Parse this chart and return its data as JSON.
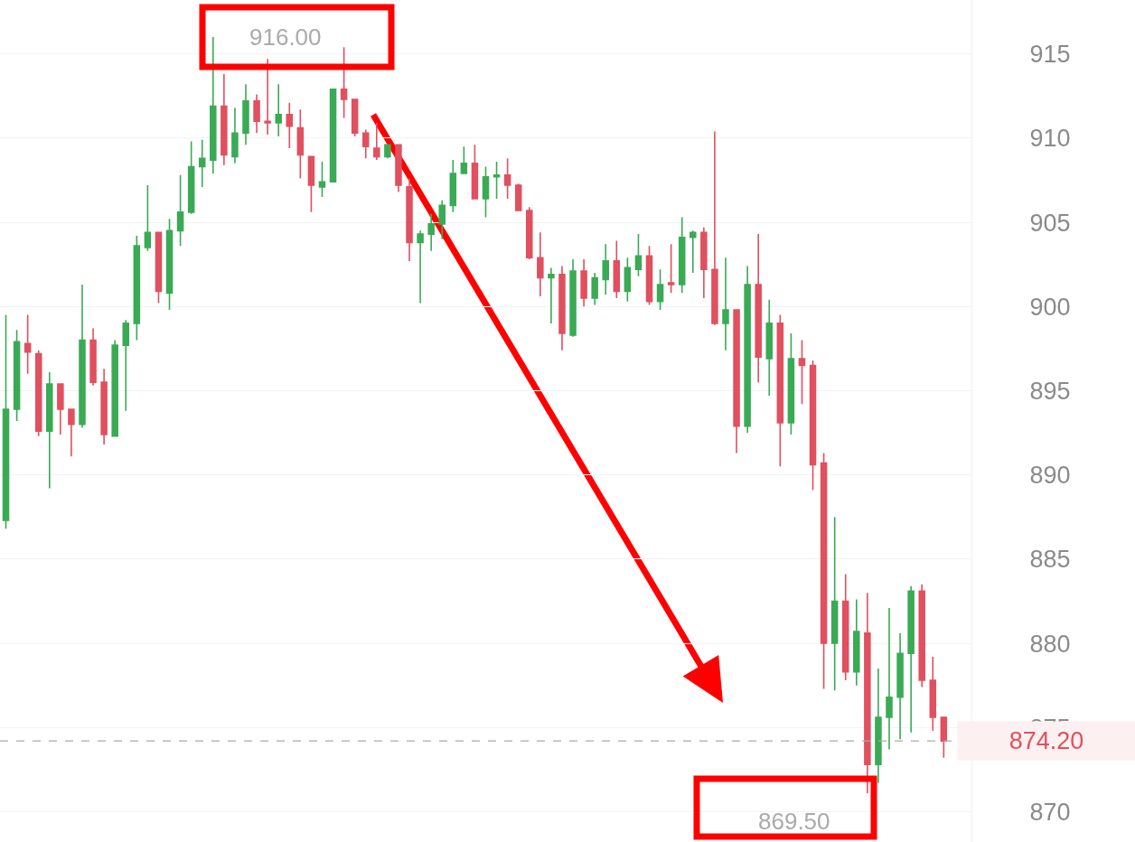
{
  "chart_data": {
    "type": "candlestick",
    "categories": [
      null,
      null,
      null,
      null,
      null,
      null,
      null,
      null,
      null,
      null,
      null,
      null,
      null,
      null,
      null,
      null,
      null,
      null,
      null,
      null,
      null,
      null,
      null,
      null,
      null,
      null,
      null,
      null,
      null,
      null,
      null,
      null,
      null,
      null,
      null,
      null,
      null,
      null,
      null,
      null,
      null,
      null,
      null,
      null,
      null,
      null,
      null,
      null,
      null,
      null,
      null,
      null,
      null,
      null,
      null,
      null,
      null,
      null,
      null,
      null,
      null,
      null,
      null,
      null,
      null,
      null,
      null,
      null,
      null,
      null,
      null,
      null,
      null,
      null,
      null,
      null,
      null,
      null,
      null,
      null,
      null,
      null,
      null,
      null,
      null,
      null,
      null
    ],
    "ohlc": [
      [
        887.3,
        899.5,
        886.8,
        893.9
      ],
      [
        893.9,
        898.6,
        893.2,
        897.9
      ],
      [
        897.8,
        899.5,
        896.0,
        897.3
      ],
      [
        897.2,
        897.4,
        892.3,
        892.6
      ],
      [
        892.6,
        896.1,
        889.2,
        895.4
      ],
      [
        895.4,
        895.4,
        892.4,
        893.9
      ],
      [
        893.9,
        893.9,
        891.1,
        893.0
      ],
      [
        893.0,
        901.3,
        892.8,
        898.0
      ],
      [
        898.0,
        898.7,
        895.3,
        895.5
      ],
      [
        895.5,
        896.3,
        891.8,
        892.4
      ],
      [
        892.3,
        898.0,
        892.3,
        897.7
      ],
      [
        897.7,
        899.2,
        893.8,
        899.0
      ],
      [
        899.0,
        904.2,
        898.0,
        903.6
      ],
      [
        903.5,
        907.2,
        903.3,
        904.4
      ],
      [
        904.4,
        904.4,
        900.2,
        900.9
      ],
      [
        900.8,
        905.2,
        899.8,
        904.5
      ],
      [
        904.5,
        907.8,
        903.6,
        905.6
      ],
      [
        905.6,
        909.8,
        905.5,
        908.3
      ],
      [
        908.3,
        909.9,
        907.1,
        908.8
      ],
      [
        908.7,
        916.0,
        907.9,
        911.9
      ],
      [
        911.9,
        913.8,
        908.4,
        909.0
      ],
      [
        908.9,
        911.8,
        908.5,
        910.3
      ],
      [
        910.3,
        913.2,
        909.6,
        912.2
      ],
      [
        912.2,
        912.6,
        910.3,
        911.0
      ],
      [
        911.0,
        914.7,
        910.2,
        910.9
      ],
      [
        910.9,
        913.2,
        910.1,
        911.4
      ],
      [
        911.4,
        912.1,
        909.4,
        910.7
      ],
      [
        910.6,
        911.7,
        907.6,
        909.0
      ],
      [
        908.9,
        908.9,
        905.6,
        907.2
      ],
      [
        907.1,
        908.6,
        906.5,
        907.4
      ],
      [
        907.4,
        912.9,
        907.4,
        912.9
      ],
      [
        912.9,
        915.4,
        911.2,
        912.3
      ],
      [
        912.3,
        912.3,
        910.1,
        910.3
      ],
      [
        910.3,
        910.5,
        908.8,
        909.5
      ],
      [
        909.4,
        910.9,
        908.7,
        908.9
      ],
      [
        908.9,
        909.6,
        908.8,
        909.6
      ],
      [
        909.6,
        909.6,
        906.8,
        907.2
      ],
      [
        907.1,
        907.6,
        902.7,
        903.8
      ],
      [
        903.8,
        904.5,
        900.2,
        904.3
      ],
      [
        904.3,
        905.5,
        903.3,
        904.9
      ],
      [
        904.9,
        906.3,
        904.0,
        906.0
      ],
      [
        906.0,
        908.7,
        905.6,
        907.9
      ],
      [
        907.9,
        909.5,
        907.9,
        908.5
      ],
      [
        908.5,
        909.6,
        906.4,
        906.4
      ],
      [
        906.4,
        908.3,
        905.3,
        907.7
      ],
      [
        907.7,
        908.6,
        906.4,
        907.8
      ],
      [
        907.8,
        908.8,
        906.4,
        907.2
      ],
      [
        907.2,
        907.3,
        905.7,
        905.7
      ],
      [
        905.7,
        905.9,
        902.8,
        902.9
      ],
      [
        902.9,
        904.4,
        900.6,
        901.7
      ],
      [
        901.7,
        902.3,
        899.0,
        901.9
      ],
      [
        901.9,
        902.4,
        897.4,
        898.4
      ],
      [
        898.3,
        902.8,
        898.2,
        902.1
      ],
      [
        902.1,
        902.8,
        900.0,
        900.5
      ],
      [
        900.5,
        902.0,
        900.1,
        901.7
      ],
      [
        901.6,
        903.7,
        900.7,
        902.7
      ],
      [
        902.7,
        903.9,
        900.5,
        900.9
      ],
      [
        900.9,
        902.9,
        900.3,
        902.3
      ],
      [
        902.2,
        904.3,
        901.8,
        903.0
      ],
      [
        903.0,
        903.6,
        900.1,
        900.3
      ],
      [
        900.3,
        902.2,
        899.8,
        901.3
      ],
      [
        901.4,
        903.7,
        900.8,
        901.3
      ],
      [
        901.3,
        905.3,
        900.8,
        904.1
      ],
      [
        904.1,
        904.5,
        902.0,
        904.4
      ],
      [
        904.4,
        904.7,
        900.5,
        902.2
      ],
      [
        902.2,
        910.4,
        898.9,
        899.0
      ],
      [
        899.0,
        902.9,
        897.4,
        899.8
      ],
      [
        899.8,
        899.8,
        891.3,
        892.9
      ],
      [
        892.9,
        902.4,
        892.5,
        901.3
      ],
      [
        901.3,
        904.3,
        895.5,
        897.0
      ],
      [
        896.9,
        900.4,
        894.7,
        899.0
      ],
      [
        899.0,
        899.5,
        890.5,
        893.1
      ],
      [
        893.1,
        898.4,
        892.4,
        896.9
      ],
      [
        896.9,
        898.0,
        894.2,
        896.5
      ],
      [
        896.5,
        896.8,
        889.1,
        890.6
      ],
      [
        890.7,
        891.3,
        877.3,
        880.0
      ],
      [
        880.0,
        887.5,
        877.2,
        882.5
      ],
      [
        882.5,
        884.1,
        877.8,
        878.3
      ],
      [
        878.3,
        882.6,
        877.5,
        880.7
      ],
      [
        880.6,
        883.0,
        871.1,
        872.8
      ],
      [
        872.8,
        878.5,
        871.7,
        875.6
      ],
      [
        875.6,
        882.1,
        873.7,
        876.8
      ],
      [
        876.8,
        880.6,
        874.3,
        879.4
      ],
      [
        879.4,
        883.4,
        874.7,
        883.1
      ],
      [
        883.1,
        883.5,
        877.4,
        877.8
      ],
      [
        877.8,
        879.2,
        874.8,
        875.6
      ],
      [
        875.6,
        875.6,
        873.2,
        874.2
      ]
    ],
    "colors": [
      "#3aaa55",
      "#3aaa55",
      "#e0505f",
      "#e0505f",
      "#3aaa55",
      "#e0505f",
      "#e0505f",
      "#3aaa55",
      "#e0505f",
      "#e0505f",
      "#3aaa55",
      "#3aaa55",
      "#3aaa55",
      "#3aaa55",
      "#e0505f",
      "#3aaa55",
      "#3aaa55",
      "#3aaa55",
      "#3aaa55",
      "#3aaa55",
      "#e0505f",
      "#3aaa55",
      "#3aaa55",
      "#e0505f",
      "#e0505f",
      "#3aaa55",
      "#e0505f",
      "#e0505f",
      "#e0505f",
      "#3aaa55",
      "#3aaa55",
      "#e0505f",
      "#e0505f",
      "#e0505f",
      "#e0505f",
      "#3aaa55",
      "#e0505f",
      "#e0505f",
      "#3aaa55",
      "#3aaa55",
      "#3aaa55",
      "#3aaa55",
      "#3aaa55",
      "#e0505f",
      "#3aaa55",
      "#3aaa55",
      "#e0505f",
      "#e0505f",
      "#e0505f",
      "#e0505f",
      "#3aaa55",
      "#e0505f",
      "#3aaa55",
      "#e0505f",
      "#3aaa55",
      "#3aaa55",
      "#e0505f",
      "#3aaa55",
      "#3aaa55",
      "#e0505f",
      "#3aaa55",
      "#e0505f",
      "#3aaa55",
      "#3aaa55",
      "#e0505f",
      "#e0505f",
      "#3aaa55",
      "#e0505f",
      "#3aaa55",
      "#e0505f",
      "#3aaa55",
      "#e0505f",
      "#3aaa55",
      "#e0505f",
      "#e0505f",
      "#e0505f",
      "#3aaa55",
      "#e0505f",
      "#3aaa55",
      "#e0505f",
      "#3aaa55",
      "#3aaa55",
      "#3aaa55",
      "#3aaa55",
      "#e0505f",
      "#e0505f",
      "#e0505f"
    ],
    "ylim": [
      868.2,
      918.2
    ],
    "yticks": [
      870,
      875,
      880,
      885,
      890,
      895,
      900,
      905,
      910,
      915
    ],
    "grid": "y",
    "tick_labels": "y",
    "annotations": [
      "916.00",
      "869.50"
    ],
    "ref_lines": [
      {
        "axis": "y",
        "value": 874.2,
        "label": "874.20",
        "color": "#aaaaaa",
        "line_style": "dashed"
      }
    ]
  }
}
